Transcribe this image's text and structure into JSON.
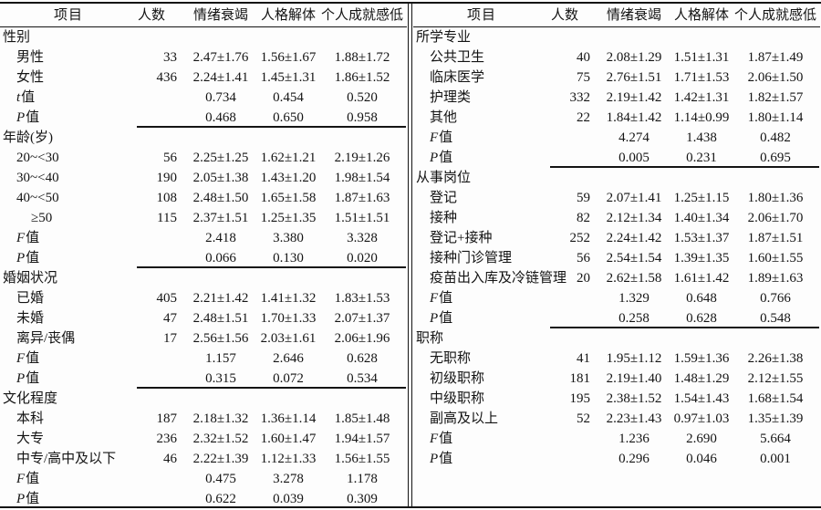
{
  "colors": {
    "ink": "#141414",
    "paper": "#fdfdfd"
  },
  "table": {
    "columns": [
      "项目",
      "人数",
      "情绪衰竭",
      "人格解体",
      "个人成就感低"
    ],
    "halves": [
      {
        "name": "left",
        "rows": [
          {
            "t": "section",
            "label": "性别"
          },
          {
            "t": "item",
            "label": "男性",
            "n": "33",
            "c": [
              "2.47±1.76",
              "1.56±1.67",
              "1.88±1.72"
            ]
          },
          {
            "t": "item",
            "label": "女性",
            "n": "436",
            "c": [
              "2.24±1.41",
              "1.45±1.31",
              "1.86±1.52"
            ]
          },
          {
            "t": "stat",
            "letter": "t",
            "suffix": "值",
            "c": [
              "0.734",
              "0.454",
              "0.520"
            ],
            "rule": false
          },
          {
            "t": "stat",
            "letter": "P",
            "suffix": "值",
            "c": [
              "0.468",
              "0.650",
              "0.958"
            ],
            "rule": true
          },
          {
            "t": "section",
            "label": "年龄(岁)"
          },
          {
            "t": "item",
            "label": "20~<30",
            "n": "56",
            "c": [
              "2.25±1.25",
              "1.62±1.21",
              "2.19±1.26"
            ]
          },
          {
            "t": "item",
            "label": "30~<40",
            "n": "190",
            "c": [
              "2.05±1.38",
              "1.43±1.20",
              "1.98±1.54"
            ]
          },
          {
            "t": "item",
            "label": "40~<50",
            "n": "108",
            "c": [
              "2.48±1.50",
              "1.65±1.58",
              "1.87±1.63"
            ]
          },
          {
            "t": "item",
            "label": "≥50",
            "deep": true,
            "n": "115",
            "c": [
              "2.37±1.51",
              "1.25±1.35",
              "1.51±1.51"
            ]
          },
          {
            "t": "stat",
            "letter": "F",
            "suffix": "值",
            "c": [
              "2.418",
              "3.380",
              "3.328"
            ],
            "rule": false
          },
          {
            "t": "stat",
            "letter": "P",
            "suffix": "值",
            "c": [
              "0.066",
              "0.130",
              "0.020"
            ],
            "rule": true
          },
          {
            "t": "section",
            "label": "婚姻状况"
          },
          {
            "t": "item",
            "label": "已婚",
            "n": "405",
            "c": [
              "2.21±1.42",
              "1.41±1.32",
              "1.83±1.53"
            ]
          },
          {
            "t": "item",
            "label": "未婚",
            "n": "47",
            "c": [
              "2.48±1.51",
              "1.70±1.33",
              "2.07±1.37"
            ]
          },
          {
            "t": "item",
            "label": "离异/丧偶",
            "n": "17",
            "c": [
              "2.56±1.56",
              "2.03±1.61",
              "2.06±1.96"
            ]
          },
          {
            "t": "stat",
            "letter": "F",
            "suffix": "值",
            "c": [
              "1.157",
              "2.646",
              "0.628"
            ],
            "rule": false
          },
          {
            "t": "stat",
            "letter": "P",
            "suffix": "值",
            "c": [
              "0.315",
              "0.072",
              "0.534"
            ],
            "rule": true
          },
          {
            "t": "section",
            "label": "文化程度"
          },
          {
            "t": "item",
            "label": "本科",
            "n": "187",
            "c": [
              "2.18±1.32",
              "1.36±1.14",
              "1.85±1.48"
            ]
          },
          {
            "t": "item",
            "label": "大专",
            "n": "236",
            "c": [
              "2.32±1.52",
              "1.60±1.47",
              "1.94±1.57"
            ]
          },
          {
            "t": "item",
            "label": "中专/高中及以下",
            "n": "46",
            "c": [
              "2.22±1.39",
              "1.12±1.33",
              "1.56±1.55"
            ]
          },
          {
            "t": "stat",
            "letter": "F",
            "suffix": "值",
            "c": [
              "0.475",
              "3.278",
              "1.178"
            ],
            "rule": false
          },
          {
            "t": "stat",
            "letter": "P",
            "suffix": "值",
            "c": [
              "0.622",
              "0.039",
              "0.309"
            ],
            "rule": false
          }
        ]
      },
      {
        "name": "right",
        "rows": [
          {
            "t": "section",
            "label": "所学专业"
          },
          {
            "t": "item",
            "label": "公共卫生",
            "n": "40",
            "c": [
              "2.08±1.29",
              "1.51±1.31",
              "1.87±1.49"
            ]
          },
          {
            "t": "item",
            "label": "临床医学",
            "n": "75",
            "c": [
              "2.76±1.51",
              "1.71±1.53",
              "2.06±1.50"
            ]
          },
          {
            "t": "item",
            "label": "护理类",
            "n": "332",
            "c": [
              "2.19±1.42",
              "1.42±1.31",
              "1.82±1.57"
            ]
          },
          {
            "t": "item",
            "label": "其他",
            "n": "22",
            "c": [
              "1.84±1.42",
              "1.14±0.99",
              "1.80±1.14"
            ]
          },
          {
            "t": "stat",
            "letter": "F",
            "suffix": "值",
            "c": [
              "4.274",
              "1.438",
              "0.482"
            ],
            "rule": false
          },
          {
            "t": "stat",
            "letter": "P",
            "suffix": "值",
            "c": [
              "0.005",
              "0.231",
              "0.695"
            ],
            "rule": true
          },
          {
            "t": "section",
            "label": "从事岗位"
          },
          {
            "t": "item",
            "label": "登记",
            "n": "59",
            "c": [
              "2.07±1.41",
              "1.25±1.15",
              "1.80±1.36"
            ]
          },
          {
            "t": "item",
            "label": "接种",
            "n": "82",
            "c": [
              "2.12±1.34",
              "1.40±1.34",
              "2.06±1.70"
            ]
          },
          {
            "t": "item",
            "label": "登记+接种",
            "n": "252",
            "c": [
              "2.24±1.42",
              "1.53±1.37",
              "1.87±1.51"
            ]
          },
          {
            "t": "item",
            "label": "接种门诊管理",
            "n": "56",
            "c": [
              "2.54±1.54",
              "1.39±1.35",
              "1.60±1.55"
            ]
          },
          {
            "t": "item",
            "label": "疫苗出入库及冷链管理",
            "n": "20",
            "c": [
              "2.62±1.58",
              "1.61±1.42",
              "1.89±1.63"
            ]
          },
          {
            "t": "stat",
            "letter": "F",
            "suffix": "值",
            "c": [
              "1.329",
              "0.648",
              "0.766"
            ],
            "rule": false
          },
          {
            "t": "stat",
            "letter": "P",
            "suffix": "值",
            "c": [
              "0.258",
              "0.628",
              "0.548"
            ],
            "rule": true
          },
          {
            "t": "section",
            "label": "职称"
          },
          {
            "t": "item",
            "label": "无职称",
            "n": "41",
            "c": [
              "1.95±1.12",
              "1.59±1.36",
              "2.26±1.38"
            ]
          },
          {
            "t": "item",
            "label": "初级职称",
            "n": "181",
            "c": [
              "2.19±1.40",
              "1.48±1.29",
              "2.12±1.55"
            ]
          },
          {
            "t": "item",
            "label": "中级职称",
            "n": "195",
            "c": [
              "2.38±1.52",
              "1.54±1.43",
              "1.68±1.54"
            ]
          },
          {
            "t": "item",
            "label": "副高及以上",
            "n": "52",
            "c": [
              "2.23±1.43",
              "0.97±1.03",
              "1.35±1.39"
            ]
          },
          {
            "t": "stat",
            "letter": "F",
            "suffix": "值",
            "c": [
              "1.236",
              "2.690",
              "5.664"
            ],
            "rule": false
          },
          {
            "t": "stat",
            "letter": "P",
            "suffix": "值",
            "c": [
              "0.296",
              "0.046",
              "0.001"
            ],
            "rule": false
          }
        ]
      }
    ]
  }
}
